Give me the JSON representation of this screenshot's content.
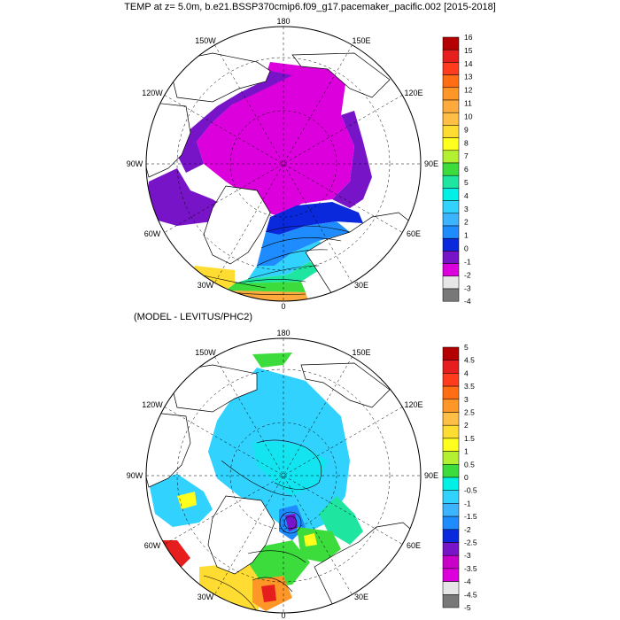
{
  "title": "TEMP at z=   5.0m, b.e21.BSSP370cmip6.f09_g17.pacemaker_pacific.002 [2015-2018]",
  "diff_title": "(MODEL - LEVITUS/PHC2)",
  "longitude_labels": {
    "top": "180",
    "bottom": "0",
    "w150": "150W",
    "e150": "150E",
    "w120": "120W",
    "e120": "120E",
    "w90": "90W",
    "e90": "90E",
    "w60": "60W",
    "e60": "60E",
    "w30": "30W",
    "e30": "30E"
  },
  "colorbar_top": {
    "labels": [
      "16",
      "15",
      "14",
      "13",
      "12",
      "11",
      "10",
      "9",
      "8",
      "7",
      "6",
      "5",
      "4",
      "3",
      "2",
      "1",
      "0",
      "-1",
      "-2",
      "-3",
      "-4"
    ],
    "colors": [
      "#b40000",
      "#e61e1e",
      "#ff3c1e",
      "#ff6e14",
      "#ff9628",
      "#ffaa3c",
      "#ffbe46",
      "#ffdc32",
      "#ffff1e",
      "#b4f032",
      "#3cdc3c",
      "#1ee6a0",
      "#00f0e6",
      "#32d2ff",
      "#3cb4ff",
      "#1e8cff",
      "#0a28dc",
      "#7814c8",
      "#dc00dc",
      "#e6e6e6",
      "#787878"
    ]
  },
  "colorbar_bottom": {
    "labels": [
      "5",
      "4.5",
      "4",
      "3.5",
      "3",
      "2.5",
      "2",
      "1.5",
      "1",
      "0.5",
      "0",
      "-0.5",
      "-1",
      "-1.5",
      "-2",
      "-2.5",
      "-3",
      "-3.5",
      "-4",
      "-4.5",
      "-5"
    ],
    "colors": [
      "#b40000",
      "#e61e1e",
      "#ff3c1e",
      "#ff6e14",
      "#ff9628",
      "#ffbe46",
      "#ffdc32",
      "#ffff1e",
      "#b4f032",
      "#3cdc3c",
      "#00f0e6",
      "#32d2ff",
      "#3cb4ff",
      "#1e8cff",
      "#0a28dc",
      "#7814c8",
      "#c800c8",
      "#dc00dc",
      "#e6e6e6",
      "#787878"
    ]
  }
}
